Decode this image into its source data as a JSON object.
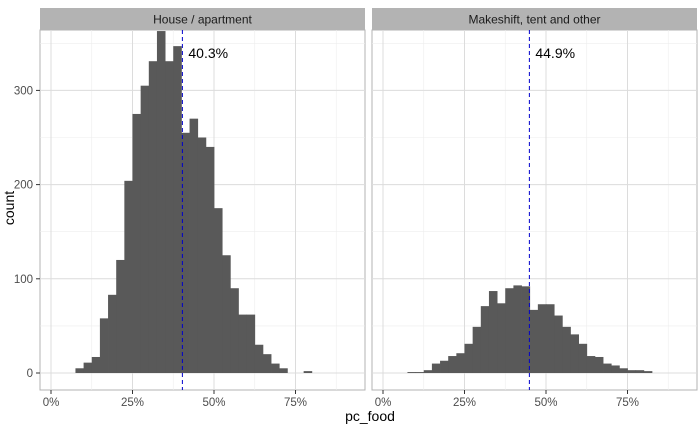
{
  "chart_data": {
    "type": "bar",
    "subtype": "faceted-histogram",
    "xlabel": "pc_food",
    "ylabel": "count",
    "grid": true,
    "xlim": [
      0,
      1
    ],
    "ylim": [
      0,
      360
    ],
    "x_ticks": [
      0,
      0.25,
      0.5,
      0.75
    ],
    "x_tick_labels": [
      "0%",
      "25%",
      "50%",
      "75%"
    ],
    "y_ticks": [
      0,
      100,
      200,
      300
    ],
    "y_tick_labels": [
      "0",
      "100",
      "200",
      "300"
    ],
    "bin_width": 0.025,
    "bins_start": 0.075,
    "bar_color": "#595959",
    "strip_color": "#b3b3b3",
    "mean_line_color": "#0000cc",
    "facets": [
      {
        "label": "House / apartment",
        "mean": 0.403,
        "mean_label": "40.3%",
        "counts": [
          5,
          11,
          17,
          58,
          83,
          120,
          204,
          275,
          305,
          331,
          363,
          331,
          347,
          255,
          270,
          250,
          240,
          175,
          125,
          90,
          62,
          62,
          30,
          20,
          10,
          5,
          0,
          0,
          2
        ]
      },
      {
        "label": "Makeshift, tent and other",
        "mean": 0.449,
        "mean_label": "44.9%",
        "counts": [
          1,
          1,
          3,
          10,
          13,
          18,
          21,
          31,
          49,
          71,
          87,
          74,
          90,
          93,
          92,
          67,
          73,
          73,
          61,
          49,
          41,
          31,
          18,
          17,
          10,
          8,
          5,
          3,
          3,
          2
        ]
      }
    ]
  }
}
